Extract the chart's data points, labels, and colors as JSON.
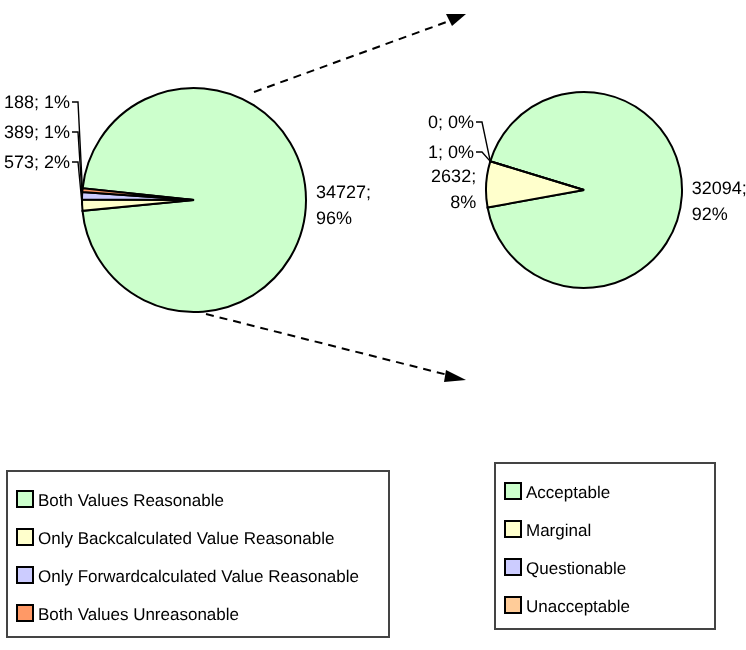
{
  "chart_data": [
    {
      "type": "pie",
      "categories": [
        "Both Values Reasonable",
        "Only Backcalculated Value Reasonable",
        "Only Forwardcalculated Value Reasonable",
        "Both Values Unreasonable"
      ],
      "values": [
        34727,
        573,
        389,
        188
      ],
      "colors": [
        "#ccffcc",
        "#ffffcc",
        "#ccccff",
        "#ff9966"
      ],
      "value_labels": [
        "34727; 96%",
        "573; 2%",
        "389; 1%",
        "188; 1%"
      ],
      "legend": "bottom"
    },
    {
      "type": "pie",
      "categories": [
        "Acceptable",
        "Marginal",
        "Questionable",
        "Unacceptable"
      ],
      "values": [
        32094,
        2632,
        1,
        0
      ],
      "colors": [
        "#ccffcc",
        "#ffffcc",
        "#ccccff",
        "#ffcc99"
      ],
      "value_labels": [
        "32094; 92%",
        "2632; 8%",
        "1; 0%",
        "0; 0%"
      ],
      "legend": "bottom"
    }
  ]
}
